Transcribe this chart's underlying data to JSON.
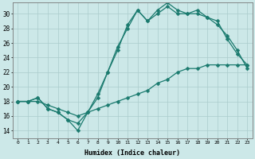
{
  "xlabel": "Humidex (Indice chaleur)",
  "bg_color": "#cce8e8",
  "grid_color": "#aacccc",
  "line_color": "#1a7a6e",
  "xlim": [
    -0.5,
    23.5
  ],
  "ylim": [
    13,
    31.5
  ],
  "yticks": [
    14,
    16,
    18,
    20,
    22,
    24,
    26,
    28,
    30
  ],
  "xticks": [
    0,
    1,
    2,
    3,
    4,
    5,
    6,
    7,
    8,
    9,
    10,
    11,
    12,
    13,
    14,
    15,
    16,
    17,
    18,
    19,
    20,
    21,
    22,
    23
  ],
  "line1_x": [
    0,
    1,
    2,
    3,
    4,
    5,
    6,
    7,
    8,
    9,
    10,
    11,
    12,
    13,
    14,
    15,
    16,
    17,
    18,
    19,
    20,
    21,
    22,
    23
  ],
  "line1_y": [
    18.0,
    18.0,
    18.5,
    17.0,
    16.5,
    15.5,
    14.0,
    16.5,
    18.5,
    22.0,
    25.0,
    28.5,
    30.5,
    29.0,
    30.5,
    31.5,
    30.5,
    30.0,
    30.5,
    29.5,
    28.5,
    27.0,
    25.0,
    22.5
  ],
  "line2_x": [
    0,
    1,
    2,
    3,
    4,
    5,
    6,
    7,
    8,
    9,
    10,
    11,
    12,
    13,
    14,
    15,
    16,
    17,
    18,
    19,
    20,
    21,
    22,
    23
  ],
  "line2_y": [
    18.0,
    18.0,
    18.5,
    17.0,
    16.5,
    15.5,
    15.0,
    16.5,
    19.0,
    22.0,
    25.5,
    28.0,
    30.5,
    29.0,
    30.0,
    31.0,
    30.0,
    30.0,
    30.0,
    29.5,
    29.0,
    26.5,
    24.5,
    23.0
  ],
  "line3_x": [
    0,
    1,
    2,
    3,
    4,
    5,
    6,
    7,
    8,
    9,
    10,
    11,
    12,
    13,
    14,
    15,
    16,
    17,
    18,
    19,
    20,
    21,
    22,
    23
  ],
  "line3_y": [
    18.0,
    18.0,
    18.0,
    17.5,
    17.0,
    16.5,
    16.0,
    16.5,
    17.0,
    17.5,
    18.0,
    18.5,
    19.0,
    19.5,
    20.5,
    21.0,
    22.0,
    22.5,
    22.5,
    23.0,
    23.0,
    23.0,
    23.0,
    23.0
  ]
}
